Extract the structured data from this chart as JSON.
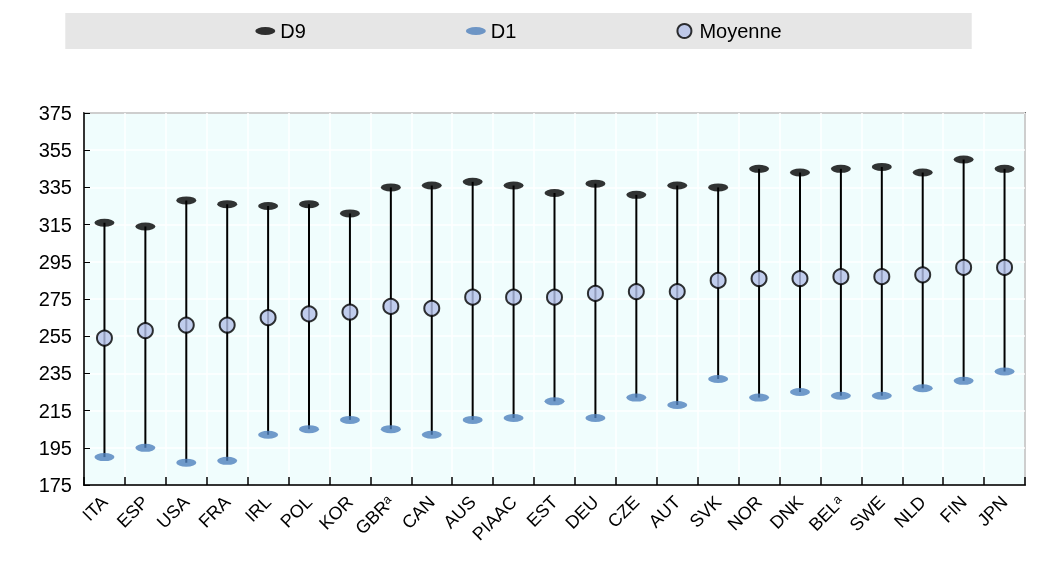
{
  "chart_data": {
    "type": "scatter",
    "categories": [
      "ITA",
      "ESP",
      "USA",
      "FRA",
      "IRL",
      "POL",
      "KOR",
      "GBRᵃ",
      "CAN",
      "AUS",
      "PIAAC",
      "EST",
      "DEU",
      "CZE",
      "AUT",
      "SVK",
      "NOR",
      "DNK",
      "BELᵃ",
      "SWE",
      "NLD",
      "FIN",
      "JPN"
    ],
    "series": [
      {
        "name": "D9",
        "color": "#000000",
        "values": [
          316,
          314,
          328,
          326,
          325,
          326,
          321,
          335,
          336,
          338,
          336,
          332,
          337,
          331,
          336,
          335,
          345,
          343,
          345,
          346,
          343,
          350,
          345
        ]
      },
      {
        "name": "D1",
        "color": "#4f81bd",
        "values": [
          190,
          195,
          187,
          188,
          202,
          205,
          210,
          205,
          202,
          210,
          211,
          220,
          211,
          222,
          218,
          232,
          222,
          225,
          223,
          223,
          227,
          231,
          236
        ]
      },
      {
        "name": "Moyenne",
        "color": "#b4c0e8",
        "marker": "circle",
        "values": [
          254,
          258,
          261,
          261,
          265,
          267,
          268,
          271,
          270,
          276,
          276,
          276,
          278,
          279,
          279,
          285,
          286,
          286,
          287,
          287,
          288,
          292,
          292
        ]
      }
    ],
    "ylim": [
      175,
      375
    ],
    "yticks": [
      175,
      195,
      215,
      235,
      255,
      275,
      295,
      315,
      335,
      355,
      375
    ],
    "grid": true,
    "legend": "top"
  }
}
